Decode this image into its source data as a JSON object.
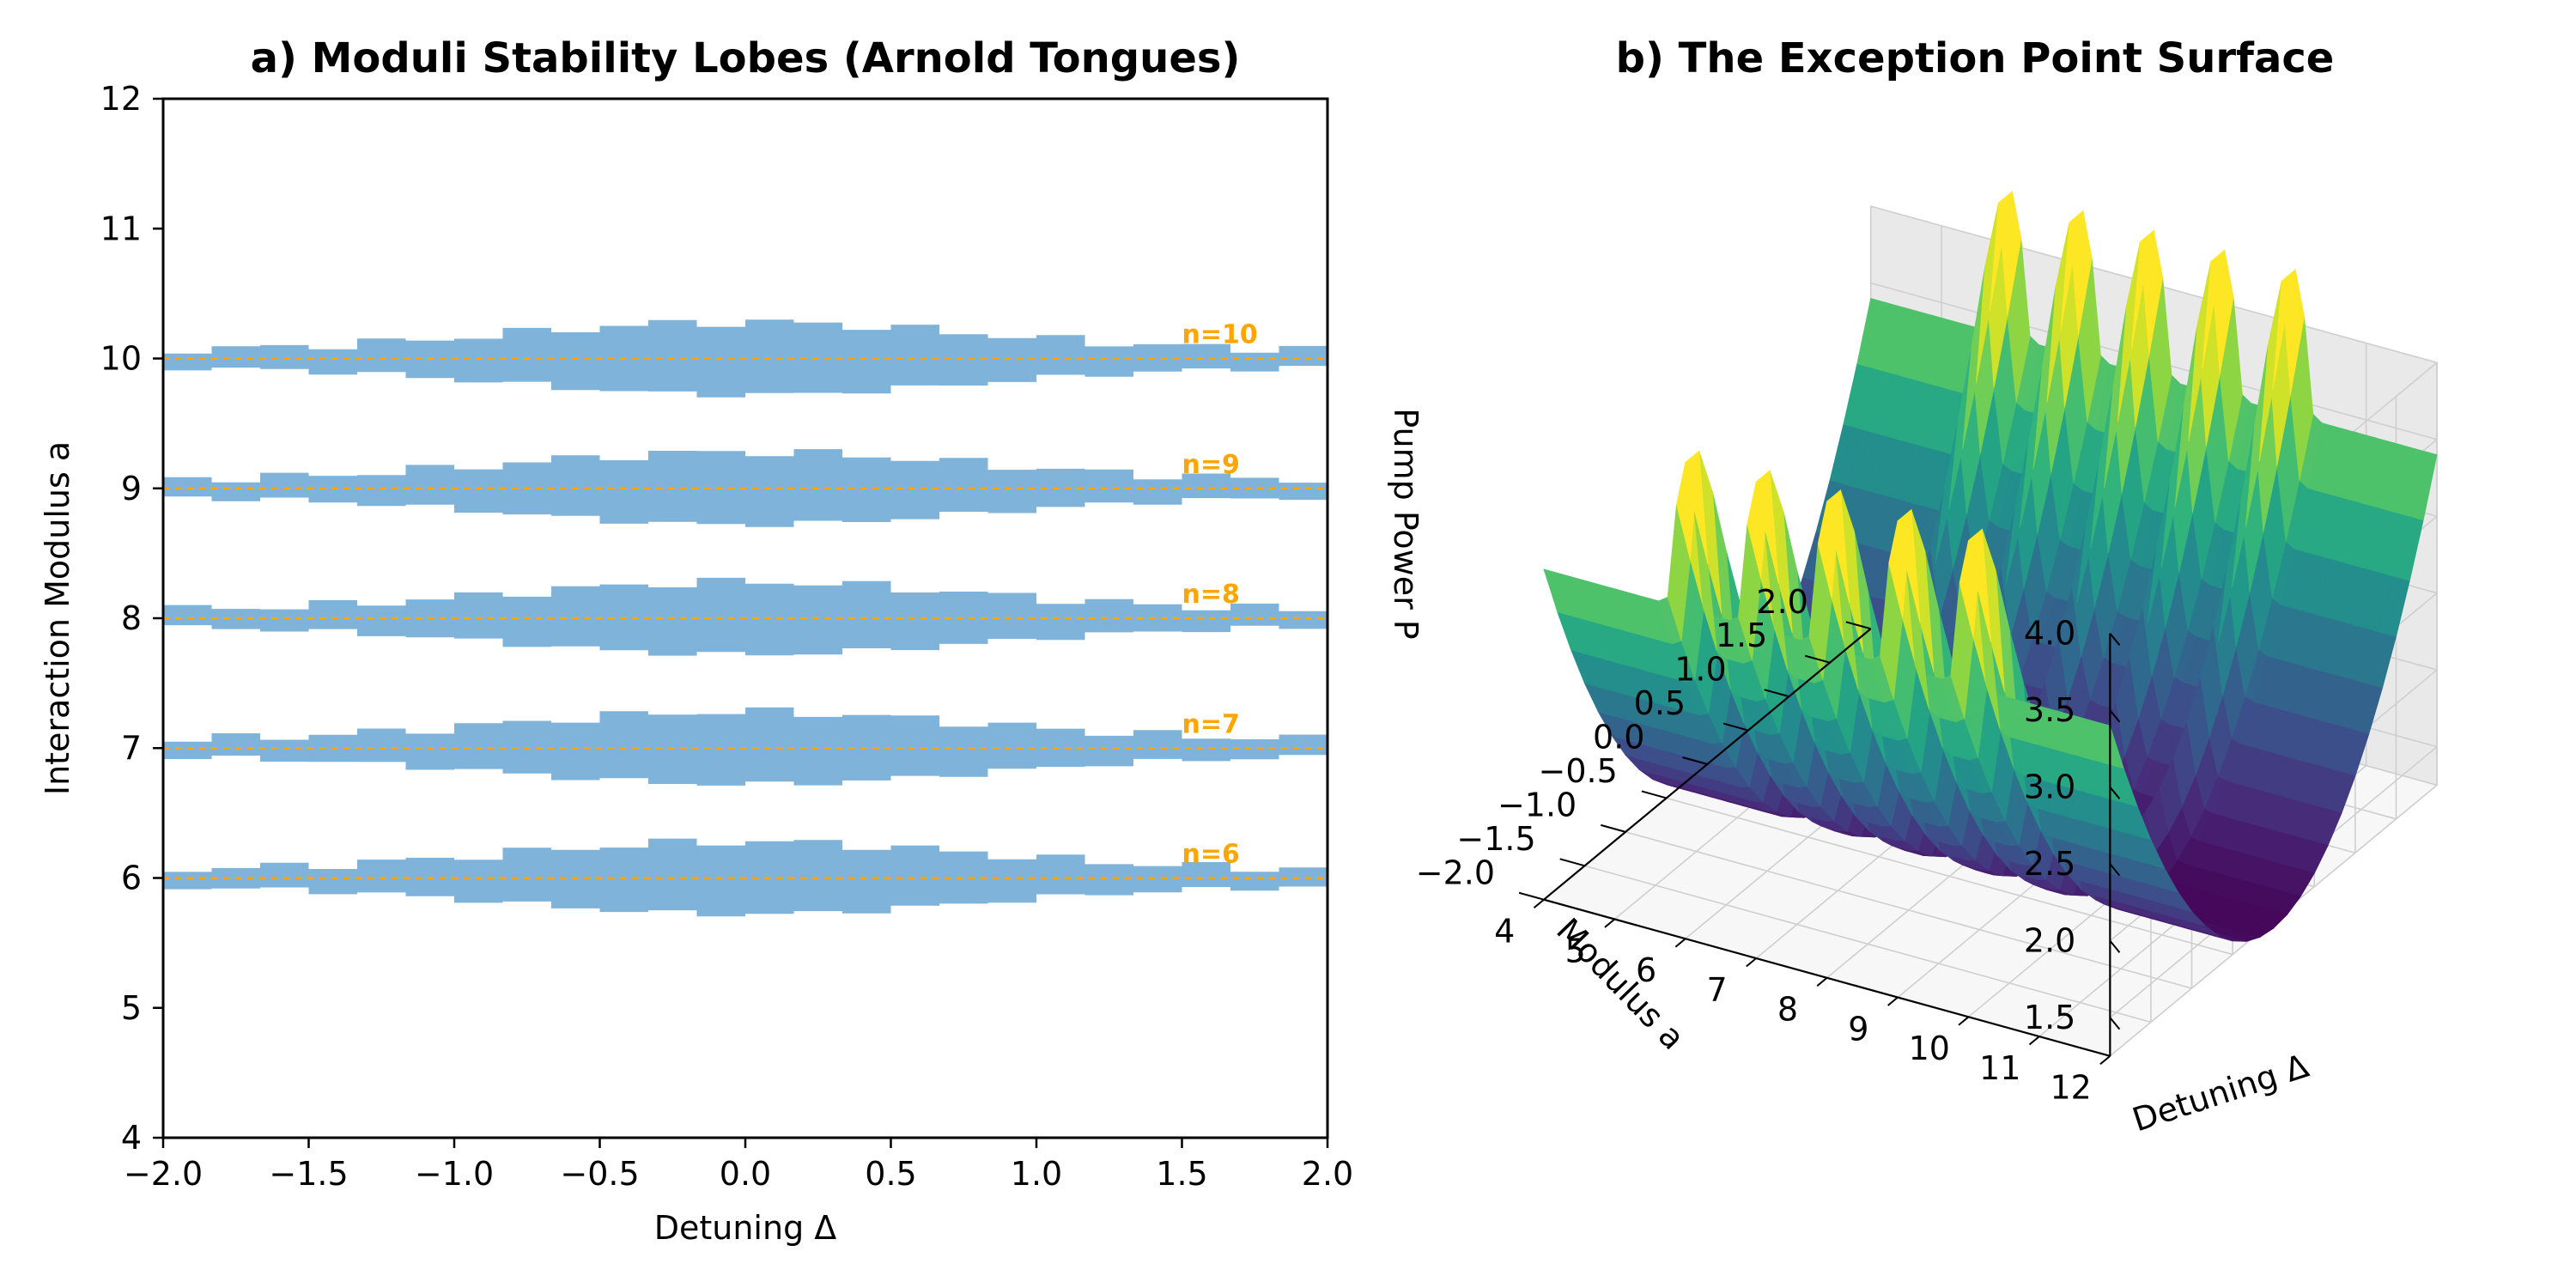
{
  "chart_data": [
    {
      "type": "area",
      "title": "a) Moduli Stability Lobes (Arnold Tongues)",
      "xlabel": "Detuning Δ",
      "ylabel": "Interaction Modulus a",
      "xlim": [
        -2.0,
        2.0
      ],
      "ylim": [
        4,
        12
      ],
      "xticks": [
        "−2.0",
        "−1.5",
        "−1.0",
        "−0.5",
        "0.0",
        "0.5",
        "1.0",
        "1.5",
        "2.0"
      ],
      "yticks": [
        "4",
        "5",
        "6",
        "7",
        "8",
        "9",
        "10",
        "11",
        "12"
      ],
      "fill_color": "#7fb3d9",
      "center_line_color": "#ffa500",
      "lobes": [
        {
          "n": 6,
          "label": "n=6",
          "center": 6,
          "half_width_at_0": 0.28,
          "half_width_at_edge": 0.06
        },
        {
          "n": 7,
          "label": "n=7",
          "center": 7,
          "half_width_at_0": 0.28,
          "half_width_at_edge": 0.06
        },
        {
          "n": 8,
          "label": "n=8",
          "center": 8,
          "half_width_at_0": 0.28,
          "half_width_at_edge": 0.06
        },
        {
          "n": 9,
          "label": "n=9",
          "center": 9,
          "half_width_at_0": 0.28,
          "half_width_at_edge": 0.06
        },
        {
          "n": 10,
          "label": "n=10",
          "center": 10,
          "half_width_at_0": 0.28,
          "half_width_at_edge": 0.06
        }
      ],
      "label_x": 1.5
    },
    {
      "type": "surface3d",
      "title": "b) The Exception Point Surface",
      "xlabel": "Detuning Δ",
      "ylabel": "Modulus a",
      "zlabel": "Pump Power P",
      "xlim": [
        -2.0,
        2.0
      ],
      "ylim": [
        4,
        12
      ],
      "zlim": [
        1.25,
        4.0
      ],
      "xticks": [
        "−2.0",
        "−1.5",
        "−1.0",
        "−0.5",
        "0.0",
        "0.5",
        "1.0",
        "1.5",
        "2.0"
      ],
      "yticks": [
        "4",
        "5",
        "6",
        "7",
        "8",
        "9",
        "10",
        "11",
        "12"
      ],
      "zticks": [
        "1.5",
        "2.0",
        "2.5",
        "3.0",
        "3.5",
        "4.0"
      ],
      "colormap": "viridis",
      "surface": {
        "base": 1.2,
        "curvature": 0.55,
        "resonance_peak": 0.9,
        "resonances": [
          6,
          7,
          8,
          9,
          10
        ]
      }
    }
  ]
}
